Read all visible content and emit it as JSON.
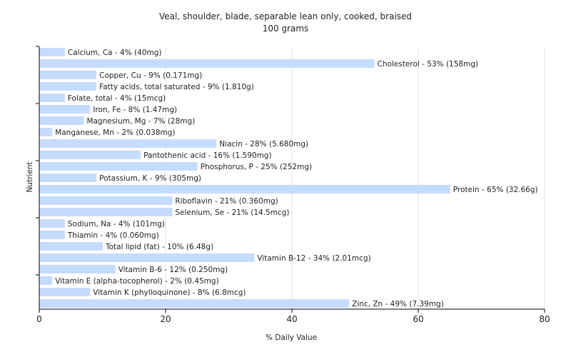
{
  "chart_data": {
    "type": "bar",
    "orientation": "horizontal",
    "title": "Veal, shoulder, blade, separable lean only, cooked, braised",
    "subtitle": "100 grams",
    "xlabel": "% Daily Value",
    "ylabel": "Nutrient",
    "xlim": [
      0,
      80
    ],
    "xticks": [
      "0",
      "20",
      "40",
      "60",
      "80"
    ],
    "grid": true,
    "bar_color": "#c6dcff",
    "series": [
      {
        "categories": [
          "Calcium, Ca",
          "Cholesterol",
          "Copper, Cu",
          "Fatty acids, total saturated",
          "Folate, total",
          "Iron, Fe",
          "Magnesium, Mg",
          "Manganese, Mn",
          "Niacin",
          "Pantothenic acid",
          "Phosphorus, P",
          "Potassium, K",
          "Protein",
          "Riboflavin",
          "Selenium, Se",
          "Sodium, Na",
          "Thiamin",
          "Total lipid (fat)",
          "Vitamin B-12",
          "Vitamin B-6",
          "Vitamin E (alpha-tocopherol)",
          "Vitamin K (phylloquinone)",
          "Zinc, Zn"
        ],
        "values": [
          4,
          53,
          9,
          9,
          4,
          8,
          7,
          2,
          28,
          16,
          25,
          9,
          65,
          21,
          21,
          4,
          4,
          10,
          34,
          12,
          2,
          8,
          49
        ],
        "labels": [
          "Calcium, Ca - 4% (40mg)",
          "Cholesterol - 53% (158mg)",
          "Copper, Cu - 9% (0.171mg)",
          "Fatty acids, total saturated - 9% (1.810g)",
          "Folate, total - 4% (15mcg)",
          "Iron, Fe - 8% (1.47mg)",
          "Magnesium, Mg - 7% (28mg)",
          "Manganese, Mn - 2% (0.038mg)",
          "Niacin - 28% (5.680mg)",
          "Pantothenic acid - 16% (1.590mg)",
          "Phosphorus, P - 25% (252mg)",
          "Potassium, K - 9% (305mg)",
          "Protein - 65% (32.66g)",
          "Riboflavin - 21% (0.360mg)",
          "Selenium, Se - 21% (14.5mcg)",
          "Sodium, Na - 4% (101mg)",
          "Thiamin - 4% (0.060mg)",
          "Total lipid (fat) - 10% (6.48g)",
          "Vitamin B-12 - 34% (2.01mcg)",
          "Vitamin B-6 - 12% (0.250mg)",
          "Vitamin E (alpha-tocopherol) - 2% (0.45mg)",
          "Vitamin K (phylloquinone) - 8% (6.8mcg)",
          "Zinc, Zn - 49% (7.39mg)"
        ]
      }
    ]
  }
}
